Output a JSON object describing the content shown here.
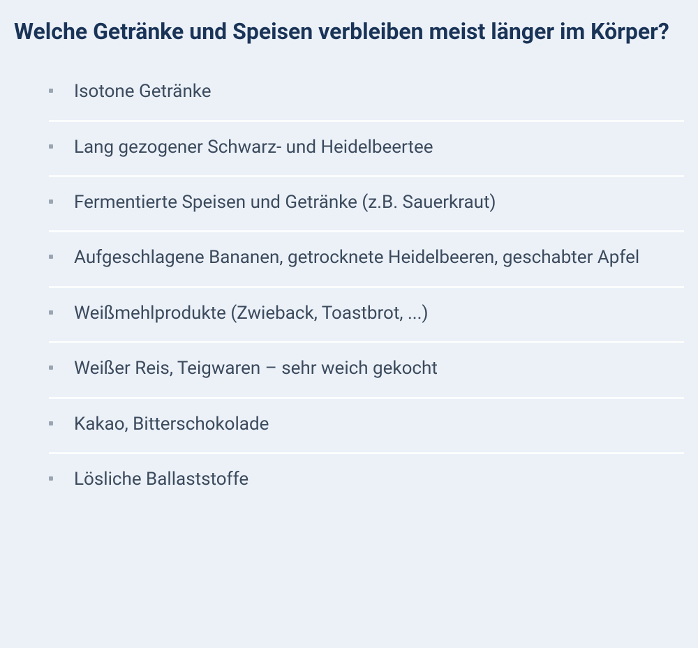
{
  "heading": "Welche Getränke und Speisen verbleiben meist länger im Körper?",
  "items": [
    "Isotone Getränke",
    "Lang gezogener Schwarz- und Heidelbeertee",
    "Fermentierte Speisen und Getränke (z.B. Sauerkraut)",
    "Aufgeschlagene Bananen, getrocknete Heidelbeeren, geschabter Apfel",
    "Weißmehlprodukte (Zwieback, Toastbrot, ...)",
    "Weißer Reis, Teigwaren – sehr weich gekocht",
    "Kakao, Bitterschokolade",
    "Lösliche Ballaststoffe"
  ],
  "colors": {
    "background": "#ecf1f8",
    "heading": "#1a3458",
    "text": "#3b4a5c",
    "bullet": "#9aa5b1",
    "divider": "#fbfcfd"
  },
  "typography": {
    "heading_fontsize": 32,
    "heading_weight": 700,
    "item_fontsize": 26,
    "item_weight": 400
  }
}
